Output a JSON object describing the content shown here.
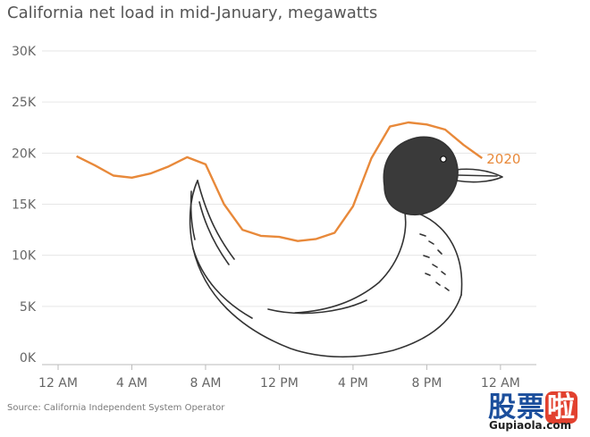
{
  "chart_data": {
    "type": "line",
    "title": "California net load in mid-January, megawatts",
    "source": "Source: California Independent System Operator",
    "xlabel": "",
    "ylabel": "",
    "x_ticks": [
      "12 AM",
      "4 AM",
      "8 AM",
      "12 PM",
      "4 PM",
      "8 PM",
      "12 AM"
    ],
    "y_ticks": [
      "0K",
      "5K",
      "10K",
      "15K",
      "20K",
      "25K",
      "30K"
    ],
    "ylim": [
      0,
      30000
    ],
    "xlim_hours": [
      0,
      24
    ],
    "grid": true,
    "series": [
      {
        "name": "2020",
        "color": "#e8893a",
        "x_hours": [
          1,
          2,
          3,
          4,
          5,
          6,
          7,
          8,
          9,
          10,
          11,
          12,
          13,
          14,
          15,
          16,
          17,
          18,
          19,
          20,
          21,
          22,
          23
        ],
        "values": [
          19700,
          18800,
          17800,
          17600,
          18000,
          18700,
          19600,
          18900,
          15000,
          12500,
          11900,
          11800,
          11400,
          11600,
          12200,
          14800,
          19500,
          22600,
          23000,
          22800,
          22300,
          20800,
          19500
        ]
      }
    ]
  },
  "watermark": {
    "chars_a": "股票",
    "chars_b": "啦",
    "url": "Gupiaola.com"
  }
}
